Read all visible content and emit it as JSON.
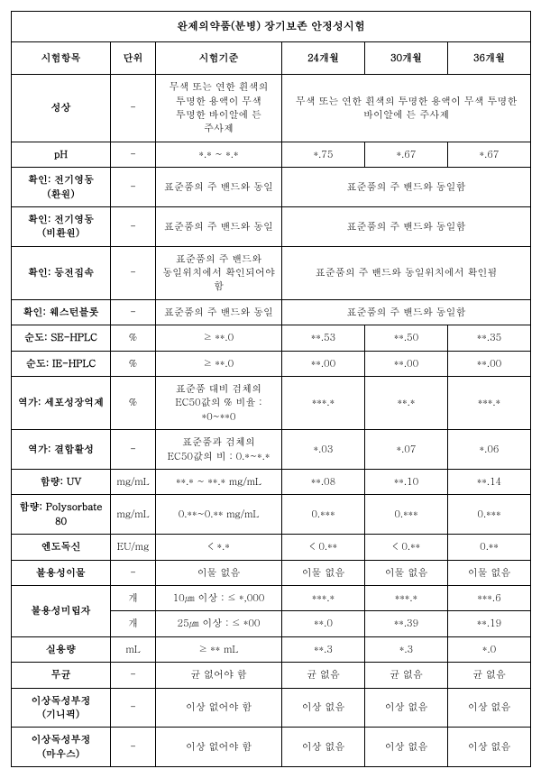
{
  "title": "완제의약품(분병) 장기보존 안정성시험",
  "headers": {
    "item": "시험항목",
    "unit": "단위",
    "criteria": "시험기준",
    "m24": "24개월",
    "m30": "30개월",
    "m36": "36개월"
  },
  "rows": {
    "r1": {
      "label": "성상",
      "unit": "-",
      "criteria": "무색 또는 연한 흰색의 투명한 용액이 무색 투명한 바이알에 든 주사제",
      "merged": "무색 또는 연한 흰색의 투명한 용액이 무색 투명한 바이알에 든 주사제"
    },
    "r2": {
      "label": "pH",
      "unit": "-",
      "criteria": "*.* ~ *.*",
      "m24": "*.75",
      "m30": "*.67",
      "m36": "*.67"
    },
    "r3": {
      "label": "확인: 전기영동(환원)",
      "unit": "-",
      "criteria": "표준품의 주 밴드와 동일",
      "merged": "표준품의 주 밴드와 동일함"
    },
    "r4": {
      "label": "확인: 전기영동 (비환원)",
      "unit": "-",
      "criteria": "표준품의 주 밴드와 동일",
      "merged": "표준품의 주 밴드와 동일함"
    },
    "r5": {
      "label": "확인: 등전집속",
      "unit": "-",
      "criteria": "표준품의 주 밴드와 동일위치에서 확인되어야 함",
      "merged": "표준품의 주 밴드와 동일위치에서 확인됨"
    },
    "r6": {
      "label": "확인: 웨스턴블롯",
      "unit": "-",
      "criteria": "표준품의 주 밴드와 동일",
      "merged": "표준품의 주 밴드와 동일함"
    },
    "r7": {
      "label": "순도: SE-HPLC",
      "unit": "%",
      "criteria": "≥ **.0",
      "m24": "**.53",
      "m30": "**.50",
      "m36": "**.35"
    },
    "r8": {
      "label": "순도: IE-HPLC",
      "unit": "%",
      "criteria": "≥ **.0",
      "m24": "**.00",
      "m30": "**.00",
      "m36": "**.00"
    },
    "r9": {
      "label": "역가: 세포성장억제",
      "unit": "%",
      "criteria": "표준품 대비 검체의 EC50값의 % 비율 : *0~**0",
      "m24": "***.*",
      "m30": "**.*",
      "m36": "***.*"
    },
    "r10": {
      "label": "역가: 결합활성",
      "unit": "-",
      "criteria": "표준품과 검체의 EC50값의 비 : 0.*~*.*",
      "m24": "*.03",
      "m30": "*.07",
      "m36": "*.06"
    },
    "r11": {
      "label": "함량: UV",
      "unit": "mg/mL",
      "criteria": "**.* ~ **.* mg/mL",
      "m24": "**.08",
      "m30": "**.10",
      "m36": "**.14"
    },
    "r12": {
      "label": "함량: Polysorbate 80",
      "unit": "mg/mL",
      "criteria": "0.**~0.** mg/mL",
      "m24": "0.***",
      "m30": "0.***",
      "m36": "0.***"
    },
    "r13": {
      "label": "엔도독신",
      "unit": "EU/mg",
      "criteria": "< *.*",
      "m24": "< 0.**",
      "m30": "< 0.**",
      "m36": "0.**"
    },
    "r14": {
      "label": "불용성이물",
      "unit": "-",
      "criteria": "이물 없음",
      "m24": "이물 없음",
      "m30": "이물 없음",
      "m36": "이물 없음"
    },
    "r15a": {
      "unit": "개",
      "criteria": "10㎛ 이상 : ≤ *,000",
      "m24": "***.*",
      "m30": "***.*",
      "m36": "***.6"
    },
    "r15label": "불용성미립자",
    "r15b": {
      "unit": "개",
      "criteria": "25㎛ 이상 : ≤ *00",
      "m24": "**.0",
      "m30": "**.39",
      "m36": "**.19"
    },
    "r16": {
      "label": "실용량",
      "unit": "mL",
      "criteria": "≥ ** mL",
      "m24": "**.3",
      "m30": "*.3",
      "m36": "*.0"
    },
    "r17": {
      "label": "무균",
      "unit": "-",
      "criteria": "균 없어야 함",
      "m24": "균 없음",
      "m30": "균 없음",
      "m36": "균 없음"
    },
    "r18": {
      "label": "이상독성부정\n(기니픽)",
      "unit": "-",
      "criteria": "이상 없어야 함",
      "m24": "이상 없음",
      "m30": "이상 없음",
      "m36": "이상 없음"
    },
    "r19": {
      "label": "이상독성부정\n(마우스)",
      "unit": "-",
      "criteria": "이상 없어야 함",
      "m24": "이상 없음",
      "m30": "이상 없음",
      "m36": "이상 없음"
    }
  }
}
